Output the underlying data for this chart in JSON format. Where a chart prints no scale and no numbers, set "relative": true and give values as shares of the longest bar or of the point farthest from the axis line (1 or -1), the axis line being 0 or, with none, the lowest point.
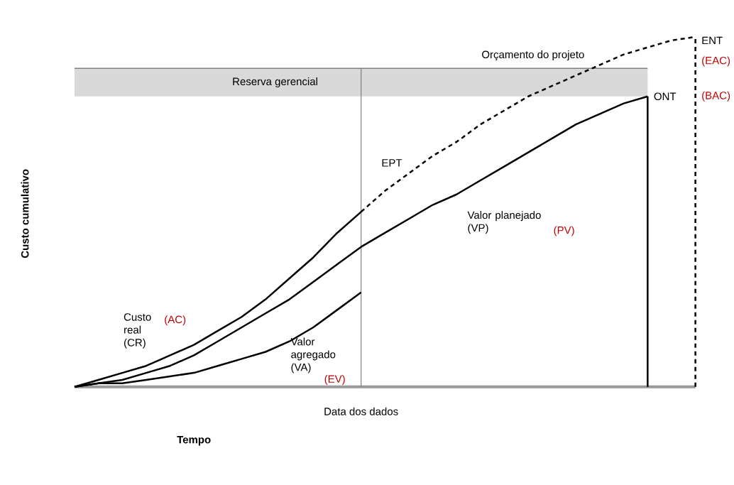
{
  "chart_data": {
    "type": "line",
    "relative": true,
    "xlabel": "Tempo",
    "ylabel": "Custo cumulativo",
    "categories": [
      null,
      null,
      null,
      null,
      null,
      null,
      null,
      null,
      null,
      null,
      null,
      null,
      null,
      null,
      null,
      null,
      null,
      null,
      null,
      null,
      null,
      null,
      null,
      null,
      null,
      null,
      null
    ],
    "series": [
      {
        "name": "Custo real (CR)",
        "color": "#000000",
        "values": [
          0,
          0.02,
          0.04,
          0.06,
          0.09,
          0.12,
          0.16,
          0.2,
          0.25,
          0.31,
          0.37,
          0.44,
          0.5,
          null,
          null,
          null,
          null,
          null,
          null,
          null,
          null,
          null,
          null,
          null,
          null,
          null,
          null
        ]
      },
      {
        "name": "Valor agregado (VA)",
        "color": "#000000",
        "values": [
          0,
          0.01,
          0.01,
          0.02,
          0.03,
          0.04,
          0.06,
          0.08,
          0.1,
          0.13,
          0.17,
          0.22,
          0.27,
          null,
          null,
          null,
          null,
          null,
          null,
          null,
          null,
          null,
          null,
          null,
          null,
          null,
          null
        ]
      },
      {
        "name": "Valor planejado (VP)",
        "color": "#000000",
        "values": [
          0,
          0.01,
          0.02,
          0.04,
          0.06,
          0.09,
          0.13,
          0.17,
          0.21,
          0.25,
          0.3,
          0.35,
          0.4,
          0.44,
          0.48,
          0.52,
          0.55,
          0.59,
          0.63,
          0.67,
          0.71,
          0.75,
          0.78,
          0.81,
          0.83,
          null,
          null
        ]
      },
      {
        "name": "EPT",
        "color": "#000000",
        "line_style": "dashed",
        "values": [
          null,
          null,
          null,
          null,
          null,
          null,
          null,
          null,
          null,
          null,
          null,
          null,
          0.5,
          0.56,
          0.61,
          0.66,
          0.7,
          0.75,
          0.79,
          0.83,
          0.86,
          0.89,
          0.92,
          0.95,
          0.97,
          0.99,
          1.0
        ]
      }
    ],
    "ref_lines": [
      {
        "axis": "y",
        "value": 0.91,
        "label": "Orçamento do projeto",
        "color": "#808080"
      }
    ],
    "bands": [
      {
        "axis": "y",
        "from": 0.83,
        "to": 0.91,
        "label": "Reserva gerencial",
        "color": "#d9d9d9"
      }
    ],
    "annotations": [
      "(AC)",
      "(EV)",
      "(PV)",
      "(EAC)",
      "(BAC)",
      "Data dos dados",
      "ONT",
      "ENT"
    ],
    "legend": false,
    "marker": "none",
    "line_style": "solid"
  }
}
